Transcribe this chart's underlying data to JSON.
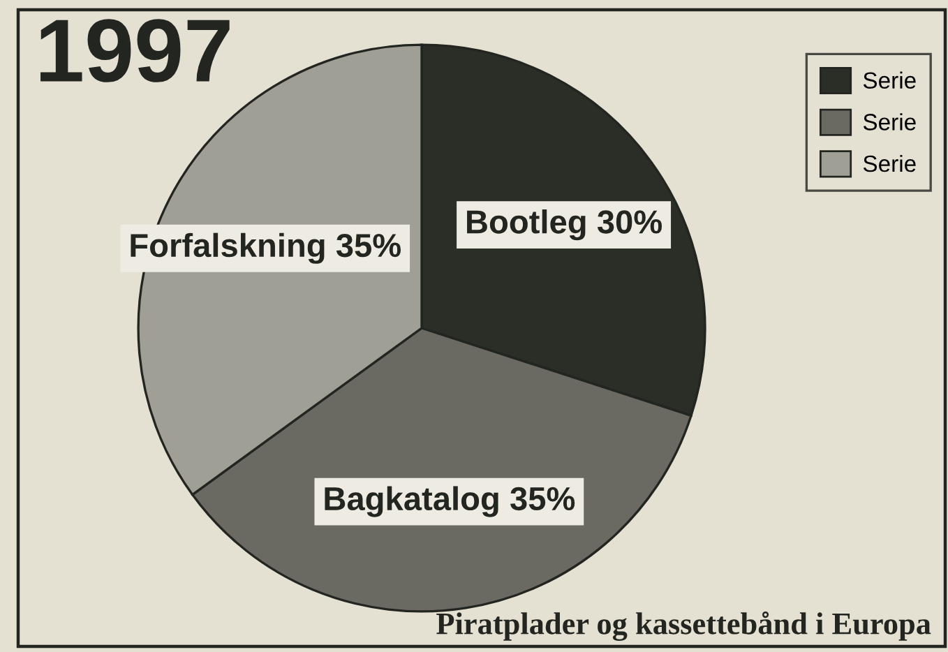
{
  "chart_data": {
    "type": "pie",
    "title": "1997",
    "categories": [
      "Serie",
      "Serie",
      "Serie"
    ],
    "values": [
      30,
      35,
      35
    ],
    "colors": [
      "#2b2e27",
      "#6a6a62",
      "#a09f96"
    ],
    "value_labels": [
      "Bootleg 30%",
      "Bagkatalog 35%",
      "Forfalskning 35%"
    ],
    "legend": "top right",
    "annotations": [
      "Piratplader og kassettebånd i Europa"
    ]
  }
}
